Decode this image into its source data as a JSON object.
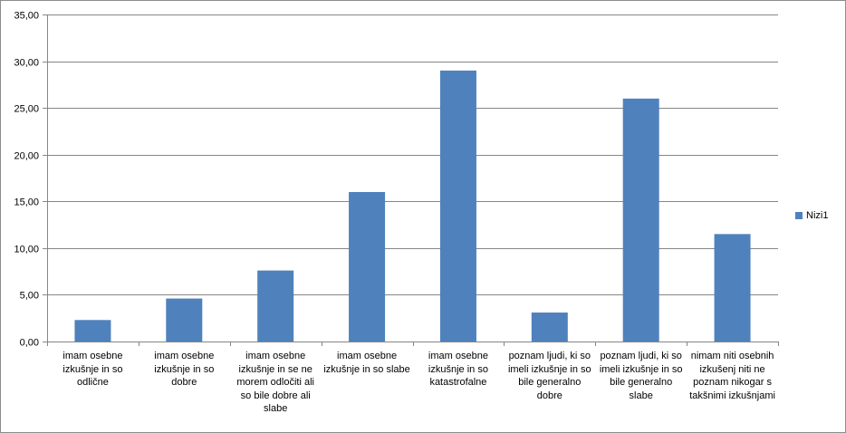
{
  "chart_data": {
    "type": "bar",
    "categories": [
      "imam osebne izkušnje in so odlične",
      "imam osebne izkušnje in so dobre",
      "imam osebne izkušnje in se ne morem odločiti ali so bile dobre ali slabe",
      "imam osebne izkušnje in so slabe",
      "imam osebne izkušnje in so katastrofalne",
      "poznam ljudi, ki so imeli izkušnje in so bile generalno dobre",
      "poznam ljudi, ki so imeli izkušnje in so bile generalno slabe",
      "nimam niti osebnih izkušenj niti ne poznam nikogar s takšnimi izkušnjami"
    ],
    "series": [
      {
        "name": "Nizi1",
        "values": [
          2.3,
          4.6,
          7.6,
          16.0,
          29.0,
          3.1,
          26.0,
          11.5
        ],
        "color": "#4f81bd"
      }
    ],
    "ylim": [
      0,
      35
    ],
    "yticks": [
      "0,00",
      "5,00",
      "10,00",
      "15,00",
      "20,00",
      "25,00",
      "30,00",
      "35,00"
    ],
    "grid": true,
    "legend_position": "right"
  }
}
